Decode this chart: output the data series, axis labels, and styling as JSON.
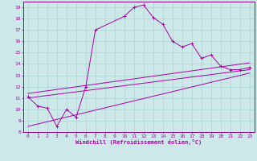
{
  "xlabel": "Windchill (Refroidissement éolien,°C)",
  "background_color": "#cce8e8",
  "grid_color": "#aad4d4",
  "line_color": "#aa00aa",
  "spine_color": "#880088",
  "xlim": [
    -0.5,
    23.5
  ],
  "ylim": [
    8,
    19.5
  ],
  "yticks": [
    8,
    9,
    10,
    11,
    12,
    13,
    14,
    15,
    16,
    17,
    18,
    19
  ],
  "xticks": [
    0,
    1,
    2,
    3,
    4,
    5,
    6,
    7,
    8,
    9,
    10,
    11,
    12,
    13,
    14,
    15,
    16,
    17,
    18,
    19,
    20,
    21,
    22,
    23
  ],
  "curve1_x": [
    0,
    1,
    2,
    3,
    4,
    5,
    6,
    7,
    10,
    11,
    12,
    13,
    14,
    15,
    16,
    17,
    18,
    19,
    20,
    21,
    22,
    23
  ],
  "curve1_y": [
    11.1,
    10.3,
    10.1,
    8.5,
    10.0,
    9.3,
    12.0,
    17.0,
    18.2,
    19.0,
    19.2,
    18.1,
    17.5,
    16.0,
    15.5,
    15.8,
    14.5,
    14.8,
    13.8,
    13.5,
    13.5,
    13.7
  ],
  "line2_x": [
    0,
    23
  ],
  "line2_y": [
    11.0,
    13.5
  ],
  "line3_x": [
    0,
    23
  ],
  "line3_y": [
    11.4,
    14.1
  ],
  "line4_x": [
    0,
    23
  ],
  "line4_y": [
    8.5,
    13.2
  ]
}
